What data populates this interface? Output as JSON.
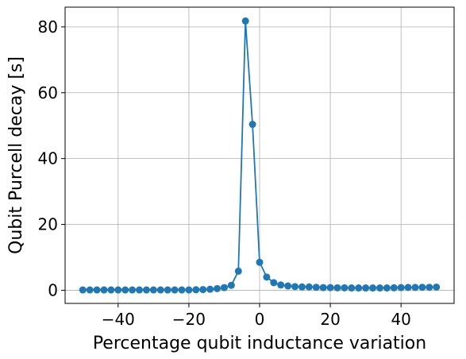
{
  "chart_data": {
    "type": "line",
    "title": "",
    "xlabel": "Percentage qubit inductance variation",
    "ylabel": "Qubit Purcell decay [s]",
    "xlim": [
      -55,
      55
    ],
    "ylim": [
      -4,
      86
    ],
    "xticks": [
      -40,
      -20,
      0,
      20,
      40
    ],
    "xtick_labels": [
      "−40",
      "−20",
      "0",
      "20",
      "40"
    ],
    "yticks": [
      0,
      20,
      40,
      60,
      80
    ],
    "ytick_labels": [
      "0",
      "20",
      "40",
      "60",
      "80"
    ],
    "grid": true,
    "legend": "none",
    "series": [
      {
        "color": "#1f77b4",
        "marker": "circle",
        "x": [
          -50,
          -48,
          -46,
          -44,
          -42,
          -40,
          -38,
          -36,
          -34,
          -32,
          -30,
          -28,
          -26,
          -24,
          -22,
          -20,
          -18,
          -16,
          -14,
          -12,
          -10,
          -8,
          -6,
          -4,
          -2,
          0,
          2,
          4,
          6,
          8,
          10,
          12,
          14,
          16,
          18,
          20,
          22,
          24,
          26,
          28,
          30,
          32,
          34,
          36,
          38,
          40,
          42,
          44,
          46,
          48,
          50
        ],
        "y": [
          0.1,
          0.1,
          0.1,
          0.1,
          0.1,
          0.1,
          0.1,
          0.1,
          0.1,
          0.1,
          0.1,
          0.1,
          0.1,
          0.1,
          0.1,
          0.1,
          0.15,
          0.2,
          0.3,
          0.5,
          0.8,
          1.5,
          5.8,
          81.8,
          50.4,
          8.5,
          4.0,
          2.3,
          1.6,
          1.3,
          1.1,
          1.0,
          1.0,
          0.9,
          0.8,
          0.8,
          0.75,
          0.75,
          0.7,
          0.7,
          0.7,
          0.7,
          0.7,
          0.7,
          0.75,
          0.8,
          0.85,
          0.85,
          0.9,
          0.9,
          0.95
        ]
      }
    ]
  }
}
